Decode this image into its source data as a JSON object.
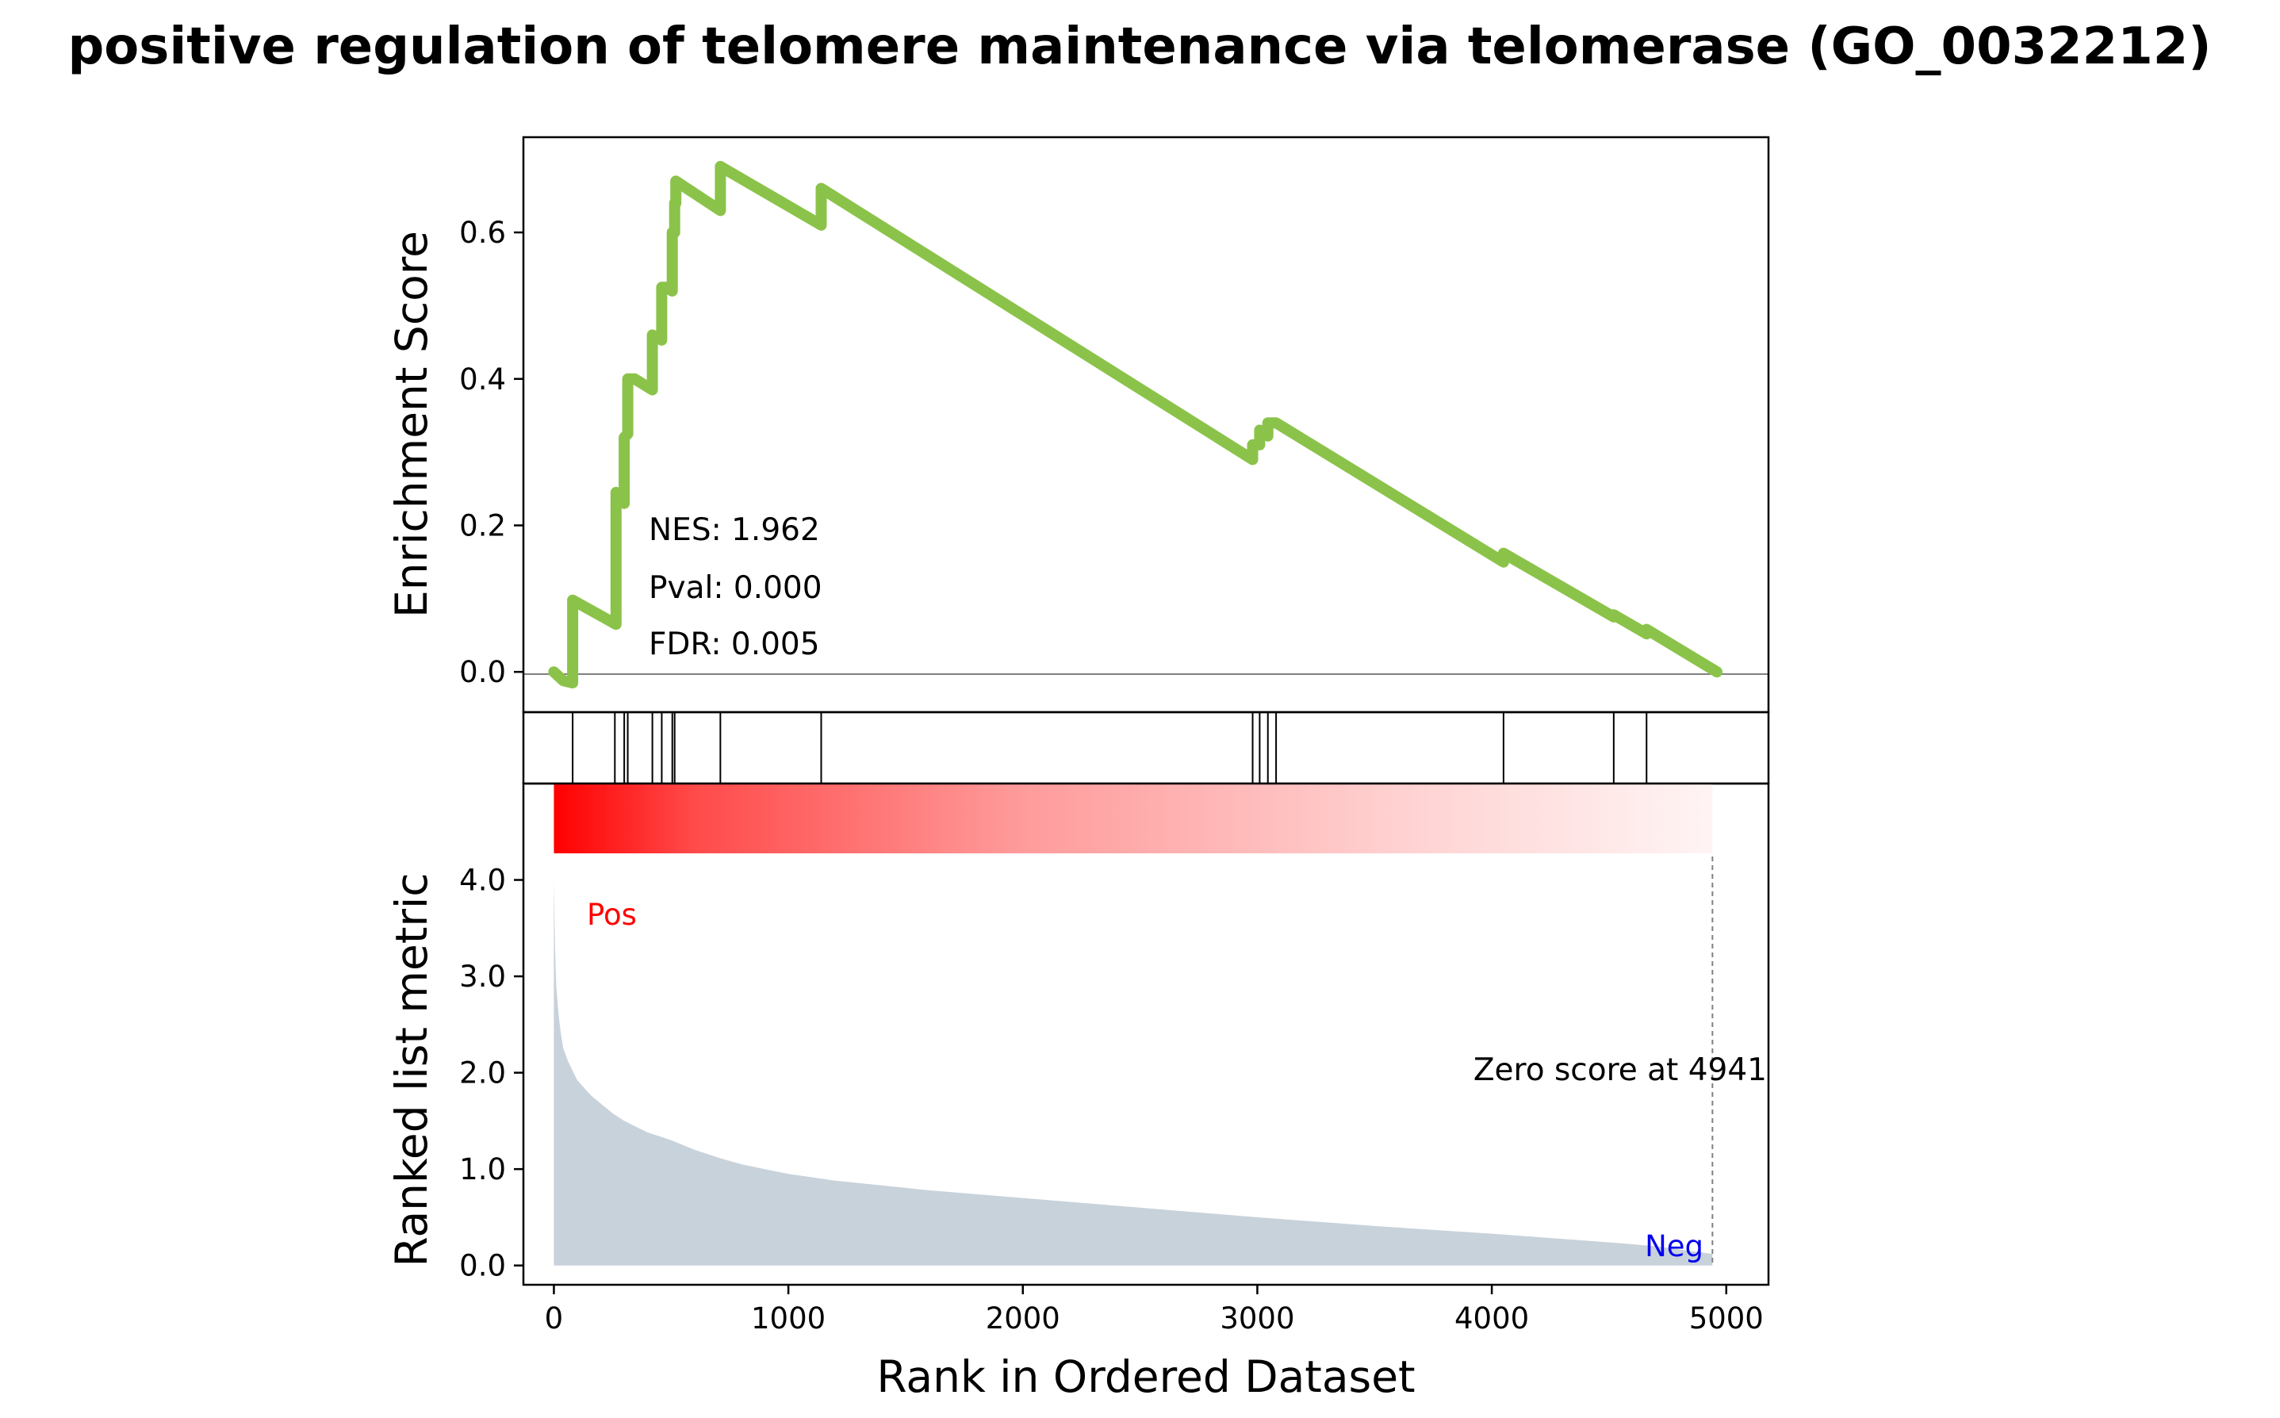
{
  "chart_data": {
    "type": "line",
    "title": "positive regulation of telomere maintenance via telomerase (GO_0032212)",
    "xlabel": "Rank in Ordered Dataset",
    "xlim": [
      -130,
      5180
    ],
    "x_ticks": [
      0,
      1000,
      2000,
      3000,
      4000,
      5000
    ],
    "panels": {
      "enrichment": {
        "ylabel": "Enrichment Score",
        "ylim": [
          -0.055,
          0.73
        ],
        "y_ticks": [
          0.0,
          0.2,
          0.4,
          0.6
        ],
        "y_tick_labels": [
          "0.0",
          "0.2",
          "0.4",
          "0.6"
        ],
        "line_color": "#8bc34a",
        "series": {
          "x": [
            0,
            40,
            80,
            80,
            265,
            265,
            300,
            300,
            315,
            315,
            345,
            345,
            420,
            420,
            460,
            460,
            480,
            480,
            505,
            505,
            515,
            515,
            520,
            520,
            710,
            710,
            1140,
            1140,
            2980,
            2980,
            3010,
            3010,
            3045,
            3045,
            3080,
            3080,
            4050,
            4050,
            4520,
            4520,
            4660,
            4660,
            4960
          ],
          "y": [
            0.0,
            -0.012,
            -0.015,
            0.098,
            0.065,
            0.245,
            0.23,
            0.32,
            0.325,
            0.4,
            0.4,
            0.4,
            0.385,
            0.46,
            0.453,
            0.525,
            0.525,
            0.525,
            0.52,
            0.6,
            0.6,
            0.64,
            0.64,
            0.67,
            0.63,
            0.69,
            0.61,
            0.66,
            0.29,
            0.31,
            0.31,
            0.33,
            0.322,
            0.34,
            0.34,
            0.34,
            0.15,
            0.162,
            0.075,
            0.078,
            0.052,
            0.058,
            0.0
          ]
        },
        "annotations": {
          "nes": "NES: 1.962",
          "pval": "Pval: 0.000",
          "fdr": "FDR: 0.005"
        }
      },
      "hits": {
        "ranks": [
          80,
          260,
          300,
          315,
          420,
          460,
          505,
          515,
          710,
          1140,
          2980,
          3010,
          3045,
          3080,
          4050,
          4520,
          4660
        ]
      },
      "ranked_metric": {
        "ylabel": "Ranked list metric",
        "ylim": [
          -0.2,
          5.0
        ],
        "y_ticks": [
          0.0,
          1.0,
          2.0,
          3.0,
          4.0
        ],
        "y_tick_labels": [
          "0.0",
          "1.0",
          "2.0",
          "3.0",
          "4.0"
        ],
        "fill_color": "#c8d2db",
        "series": {
          "x": [
            0,
            5,
            10,
            20,
            30,
            40,
            60,
            80,
            100,
            130,
            160,
            200,
            250,
            300,
            350,
            400,
            450,
            500,
            600,
            700,
            800,
            900,
            1000,
            1200,
            1400,
            1600,
            1800,
            2000,
            2500,
            3000,
            3500,
            4000,
            4500,
            4700,
            4941
          ],
          "y": [
            4.0,
            3.3,
            2.9,
            2.6,
            2.4,
            2.25,
            2.12,
            2.02,
            1.92,
            1.84,
            1.76,
            1.68,
            1.58,
            1.5,
            1.44,
            1.38,
            1.34,
            1.3,
            1.2,
            1.12,
            1.05,
            1.0,
            0.95,
            0.88,
            0.83,
            0.78,
            0.74,
            0.7,
            0.6,
            0.5,
            0.41,
            0.33,
            0.24,
            0.2,
            0.12
          ]
        },
        "pos_label": "Pos",
        "neg_label": "Neg",
        "zero_score_label": "Zero score at 4941",
        "zero_score_rank": 4941
      }
    }
  }
}
